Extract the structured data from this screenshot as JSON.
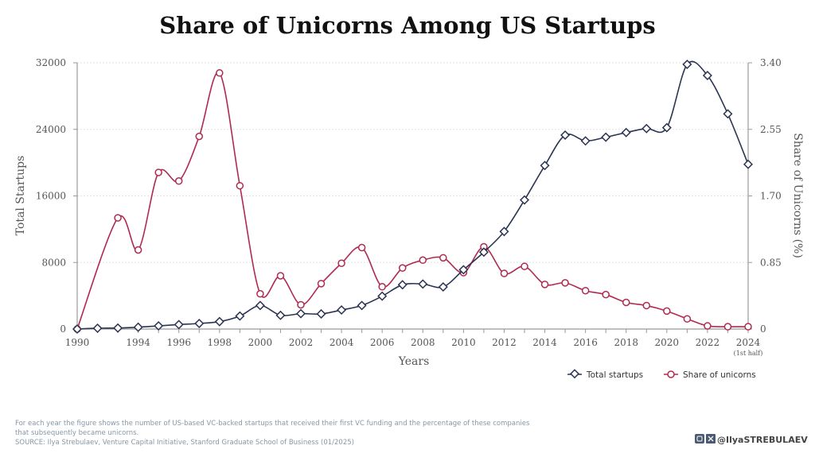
{
  "chart_data": {
    "type": "line",
    "title": "Share of Unicorns Among US Startups",
    "xlabel": "Years",
    "ylabel_left": "Total Startups",
    "ylabel_right": "Share of Unicorns (%)",
    "ylim_left": [
      0,
      32000
    ],
    "ylim_right": [
      0,
      3.4
    ],
    "yticks_left": [
      "0",
      "8000",
      "16000",
      "24000",
      "32000"
    ],
    "yticks_right": [
      "0",
      "0.85",
      "1.70",
      "2.55",
      "3.40"
    ],
    "x": [
      "1990",
      "1992",
      "1993",
      "1994",
      "1995",
      "1996",
      "1997",
      "1998",
      "1999",
      "2000",
      "2001",
      "2002",
      "2003",
      "2004",
      "2005",
      "2006",
      "2007",
      "2008",
      "2009",
      "2010",
      "2011",
      "2012",
      "2013",
      "2014",
      "2015",
      "2016",
      "2017",
      "2018",
      "2019",
      "2020",
      "2021",
      "2022",
      "2023",
      "2024"
    ],
    "xtick_labels": [
      "1990",
      "1994",
      "1996",
      "1998",
      "2000",
      "2002",
      "2004",
      "2006",
      "2008",
      "2010",
      "2012",
      "2014",
      "2016",
      "2018",
      "2020",
      "2022",
      "2024"
    ],
    "xtick_note": "(1st half)",
    "grid": true,
    "legend_position": "bottom-right",
    "series": [
      {
        "name": "Total startups",
        "axis": "left",
        "color": "#2b3452",
        "marker": "diamond",
        "values": [
          0,
          100,
          120,
          220,
          380,
          540,
          670,
          890,
          1560,
          2830,
          1650,
          1850,
          1820,
          2290,
          2830,
          3950,
          5320,
          5410,
          5060,
          7130,
          9240,
          11720,
          15510,
          19650,
          23310,
          22610,
          23060,
          23620,
          24100,
          24200,
          31810,
          30470,
          25860,
          19800
        ]
      },
      {
        "name": "Share of unicorns",
        "axis": "right",
        "color": "#b02a50",
        "marker": "circle",
        "values": [
          0,
          null,
          1.42,
          1.01,
          2.0,
          1.89,
          2.46,
          3.27,
          1.83,
          0.45,
          0.68,
          0.31,
          0.58,
          0.84,
          1.04,
          0.54,
          0.78,
          0.88,
          0.91,
          0.72,
          1.05,
          0.71,
          0.8,
          0.57,
          0.59,
          0.49,
          0.44,
          0.34,
          0.3,
          0.23,
          0.13,
          0.04,
          0.03,
          0.03
        ]
      }
    ]
  },
  "footer": {
    "note_line1": "For each year the figure shows the number of US-based VC-backed startups that received their first VC funding and the percentage of these companies",
    "note_line2": "that subsequently became unicorns.",
    "source": "SOURCE: Ilya Strebulaev, Venture Capital Initiative, Stanford Graduate School of Business (01/2025)",
    "handle": "@IlyaSTREBULAEV"
  }
}
